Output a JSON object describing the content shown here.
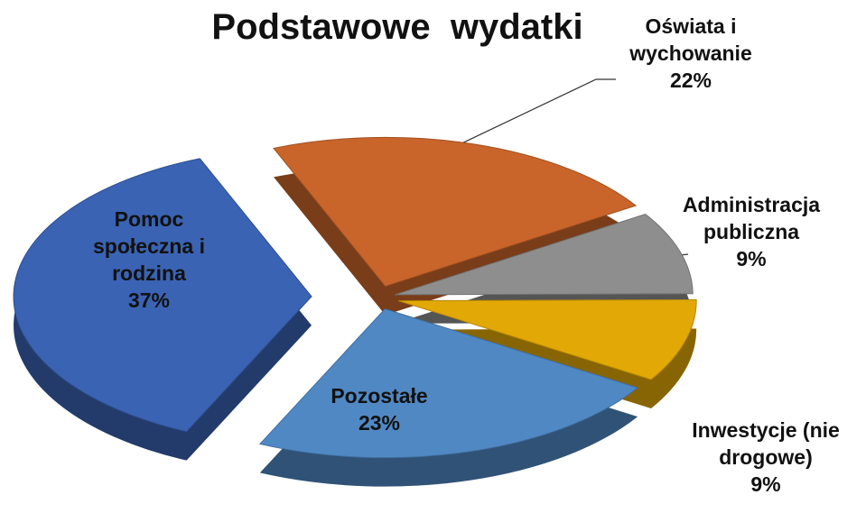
{
  "chart_data": {
    "type": "pie",
    "title": "Podstawowe  wydatki",
    "categories": [
      "Oświata i wychowanie",
      "Administracja publiczna",
      "Inwestycje (nie drogowe)",
      "Pozostałe",
      "Pomoc społeczna i rodzina"
    ],
    "values": [
      22,
      9,
      9,
      23,
      37
    ],
    "value_labels": [
      "22%",
      "9%",
      "9%",
      "23%",
      "37%"
    ],
    "colors": [
      "#c9652b",
      "#8e8e8e",
      "#e2a806",
      "#5088c4",
      "#3b63b3"
    ]
  }
}
